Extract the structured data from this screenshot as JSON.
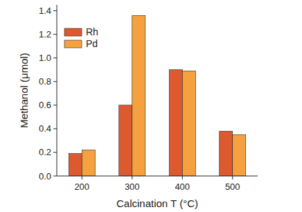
{
  "chart_data": {
    "type": "bar",
    "x_label": "Calcination T (°C)",
    "y_label": "Methanol (μmol)",
    "categories": [
      "200",
      "300",
      "400",
      "500"
    ],
    "series": [
      {
        "name": "Rh",
        "color": "#dc5a2e",
        "values": [
          0.19,
          0.6,
          0.9,
          0.38
        ]
      },
      {
        "name": "Pd",
        "color": "#f6a13f",
        "values": [
          0.22,
          1.36,
          0.89,
          0.35
        ]
      }
    ],
    "ylim": [
      0,
      1.45
    ],
    "yticks": [
      {
        "value": 0,
        "label": "0.0"
      },
      0.2,
      0.4,
      0.6,
      0.8,
      {
        "value": 1,
        "label": "1.0"
      },
      1.2,
      1.4
    ],
    "grid": false,
    "legend": "top-left"
  }
}
